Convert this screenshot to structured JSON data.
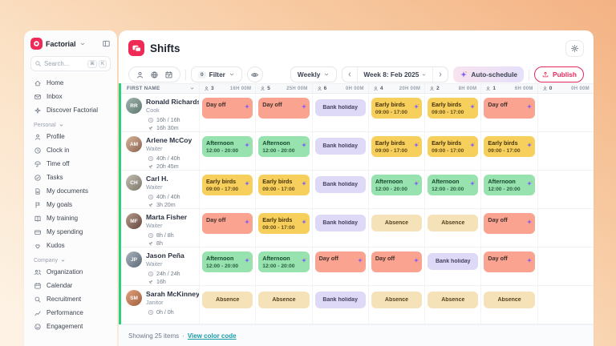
{
  "colors": {
    "accent": "#EE2B56",
    "green": "#2FD07C",
    "link": "#189BA6",
    "auto_from": "#F8E3EE",
    "auto_to": "#E5E0FB",
    "publish": "#E6295C"
  },
  "brand": {
    "name": "Factorial"
  },
  "sidebar": {
    "search": {
      "placeholder": "Search...",
      "keys": [
        "⌘",
        "K"
      ]
    },
    "top_items": [
      {
        "label": "Home",
        "icon": "home"
      },
      {
        "label": "Inbox",
        "icon": "mail"
      },
      {
        "label": "Discover Factorial",
        "icon": "sparkle-outline"
      }
    ],
    "sections": [
      {
        "label": "Personal",
        "items": [
          {
            "label": "Profile",
            "icon": "user"
          },
          {
            "label": "Clock in",
            "icon": "clock"
          },
          {
            "label": "Time off",
            "icon": "umbrella"
          },
          {
            "label": "Tasks",
            "icon": "check-circle"
          },
          {
            "label": "My documents",
            "icon": "document"
          },
          {
            "label": "My goals",
            "icon": "flag"
          },
          {
            "label": "My training",
            "icon": "book"
          },
          {
            "label": "My spending",
            "icon": "wallet"
          },
          {
            "label": "Kudos",
            "icon": "heart"
          }
        ]
      },
      {
        "label": "Company",
        "items": [
          {
            "label": "Organization",
            "icon": "people"
          },
          {
            "label": "Calendar",
            "icon": "calendar"
          },
          {
            "label": "Recruitment",
            "icon": "magnifier"
          },
          {
            "label": "Performance",
            "icon": "chart"
          },
          {
            "label": "Engagement",
            "icon": "smile"
          }
        ]
      }
    ]
  },
  "header": {
    "title": "Shifts"
  },
  "toolbar": {
    "filter_count": "0",
    "filter_label": "Filter",
    "period": "Weekly",
    "week": "Week 8: Feb 2025",
    "auto_schedule": "Auto-schedule",
    "publish": "Publish"
  },
  "table": {
    "name_header": "FIRST NAME",
    "days": [
      {
        "count": "3",
        "hours": "16H 00M"
      },
      {
        "count": "5",
        "hours": "25H 00M"
      },
      {
        "count": "6",
        "hours": "0H 00M"
      },
      {
        "count": "4",
        "hours": "20H 00M"
      },
      {
        "count": "2",
        "hours": "8H 00M"
      },
      {
        "count": "1",
        "hours": "6H 00M"
      },
      {
        "count": "0",
        "hours": "0H 00M"
      }
    ],
    "shift_types": {
      "dayoff": {
        "bg": "#F9A390",
        "text": "#40302B"
      },
      "early": {
        "bg": "#F7CF5D",
        "text": "#453309"
      },
      "afternoon": {
        "bg": "#97E2AE",
        "text": "#15482B"
      },
      "holiday": {
        "bg": "#DFD9F8",
        "text": "#46415C"
      },
      "absence": {
        "bg": "#F6E2B8",
        "text": "#54431F"
      }
    },
    "rows": [
      {
        "name": "Ronald Richards",
        "role": "Cook",
        "initials": "RR",
        "avatar": [
          "#9fb3ad",
          "#5f7a70"
        ],
        "scheduled": "16h / 16h",
        "worked": "16h 30m",
        "cards": [
          {
            "type": "dayoff",
            "title": "Day off",
            "ai": true
          },
          {
            "type": "dayoff",
            "title": "Day off",
            "ai": true
          },
          {
            "type": "holiday",
            "title": "Bank holiday"
          },
          {
            "type": "early",
            "title": "Early birds",
            "time": "09:00 - 17:00",
            "ai": true
          },
          {
            "type": "early",
            "title": "Early birds",
            "time": "09:00 - 17:00",
            "ai": true
          },
          {
            "type": "dayoff",
            "title": "Day off",
            "ai": true
          },
          null
        ]
      },
      {
        "name": "Arlene McCoy",
        "role": "Waiter",
        "initials": "AM",
        "avatar": [
          "#d9b49a",
          "#8a6350"
        ],
        "scheduled": "40h / 40h",
        "worked": "20h 45m",
        "cards": [
          {
            "type": "afternoon",
            "title": "Afternoon",
            "time": "12:00 - 20:00",
            "ai": true
          },
          {
            "type": "afternoon",
            "title": "Afternoon",
            "time": "12:00 - 20:00",
            "ai": true
          },
          {
            "type": "holiday",
            "title": "Bank holiday"
          },
          {
            "type": "early",
            "title": "Early birds",
            "time": "09:00 - 17:00",
            "ai": true
          },
          {
            "type": "early",
            "title": "Early birds",
            "time": "09:00 - 17:00",
            "ai": true
          },
          {
            "type": "early",
            "title": "Early birds",
            "time": "09:00 - 17:00",
            "ai": true
          },
          null
        ]
      },
      {
        "name": "Carl H.",
        "role": "Waiter",
        "initials": "CH",
        "avatar": [
          "#c4beb2",
          "#7d776a"
        ],
        "scheduled": "40h / 40h",
        "worked": "3h 20m",
        "cards": [
          {
            "type": "early",
            "title": "Early birds",
            "time": "09:00 - 17:00",
            "ai": true
          },
          {
            "type": "early",
            "title": "Early birds",
            "time": "09:00 - 17:00",
            "ai": true
          },
          {
            "type": "holiday",
            "title": "Bank holiday"
          },
          {
            "type": "afternoon",
            "title": "Afternoon",
            "time": "12:00 - 20:00",
            "ai": true
          },
          {
            "type": "afternoon",
            "title": "Afternoon",
            "time": "12:00 - 20:00",
            "ai": true
          },
          {
            "type": "afternoon",
            "title": "Afternoon",
            "time": "12:00 - 20:00",
            "ai": true
          },
          null
        ]
      },
      {
        "name": "Marta Fisher",
        "role": "Waiter",
        "initials": "MF",
        "avatar": [
          "#b79a8c",
          "#64493e"
        ],
        "scheduled": "8h / 8h",
        "worked": "8h",
        "cards": [
          {
            "type": "dayoff",
            "title": "Day off",
            "ai": true
          },
          {
            "type": "early",
            "title": "Early birds",
            "time": "09:00 - 17:00",
            "ai": true
          },
          {
            "type": "holiday",
            "title": "Bank holiday"
          },
          {
            "type": "absence",
            "title": "Absence"
          },
          {
            "type": "absence",
            "title": "Absence"
          },
          {
            "type": "dayoff",
            "title": "Day off",
            "ai": true
          },
          null
        ]
      },
      {
        "name": "Jason Peña",
        "role": "Waiter",
        "initials": "JP",
        "avatar": [
          "#a9b3bd",
          "#5c6a77"
        ],
        "scheduled": "24h / 24h",
        "worked": "16h",
        "cards": [
          {
            "type": "afternoon",
            "title": "Afternoon",
            "time": "12:00 - 20:00",
            "ai": true
          },
          {
            "type": "afternoon",
            "title": "Afternoon",
            "time": "12:00 - 20:00",
            "ai": true
          },
          {
            "type": "dayoff",
            "title": "Day off",
            "ai": true
          },
          {
            "type": "dayoff",
            "title": "Day off",
            "ai": true
          },
          {
            "type": "holiday",
            "title": "Bank holiday"
          },
          {
            "type": "dayoff",
            "title": "Day off",
            "ai": true
          },
          null
        ]
      },
      {
        "name": "Sarah McKinney",
        "role": "Janitor",
        "initials": "SM",
        "avatar": [
          "#e3a27e",
          "#a05f3e"
        ],
        "scheduled": "0h / 0h",
        "worked": "",
        "cards": [
          {
            "type": "absence",
            "title": "Absence"
          },
          {
            "type": "absence",
            "title": "Absence"
          },
          {
            "type": "holiday",
            "title": "Bank holiday"
          },
          {
            "type": "absence",
            "title": "Absence"
          },
          {
            "type": "absence",
            "title": "Absence"
          },
          {
            "type": "absence",
            "title": "Absence"
          },
          null
        ]
      }
    ]
  },
  "footer": {
    "showing": "Showing 25 items",
    "sep": "·",
    "link": "View color code"
  }
}
